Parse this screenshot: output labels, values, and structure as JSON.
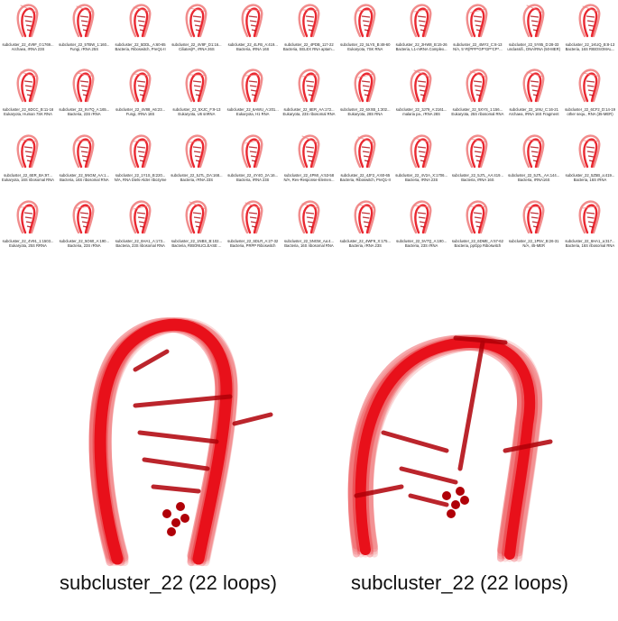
{
  "thumbnails": [
    {
      "id": "subcluster_22_4V9F_0:1769...",
      "desc": "Archaea, rRNA 23S"
    },
    {
      "id": "subcluster_22_5TBW_1:160...",
      "desc": "Fungi, rRNA 25S"
    },
    {
      "id": "subcluster_22_5DDL_A:60-65",
      "desc": "Bacteria, Riboswitch, PreQ1-II"
    },
    {
      "id": "subcluster_22_4V8F_D1:16...",
      "desc": "Ciliates(P., rRNA 26S"
    },
    {
      "id": "subcluster_22_4LFB_A:419...",
      "desc": "Bacteria, rRNA 16S"
    },
    {
      "id": "subcluster_22_4PDB_117-22",
      "desc": "Bacteria, SELEX RNA aptam..."
    },
    {
      "id": "subcluster_22_5LYS_B:48-60",
      "desc": "Eukaryota, 7SK RNA"
    },
    {
      "id": "subcluster_22_2HW8_B:15-26",
      "desc": "Bacteria, L1-mRNA Complex..."
    },
    {
      "id": "subcluster_22_4MY2_C:8-13",
      "desc": "N/A, 5'-R(PPP*GP*GP*CP*..."
    },
    {
      "id": "subcluster_22_5Y85_D:28-33",
      "desc": "unclassifi., DNA/RNA (50-MER)"
    },
    {
      "id": "subcluster_22_1KUQ_B:8-13",
      "desc": "Bacteria, 16S RIBOSOMAL..."
    },
    {
      "id": "subcluster_22_6DCC_B:11-16",
      "desc": "Eukaryota, Human 7SK RNA"
    },
    {
      "id": "subcluster_22_5V7Q_A:165...",
      "desc": "Bacteria, 23S rRNA"
    },
    {
      "id": "subcluster_22_4V88_A6:23...",
      "desc": "Fungi, rRNA 18S"
    },
    {
      "id": "subcluster_22_5XJC_F:9-13",
      "desc": "Eukaryota, U6 snRNA"
    },
    {
      "id": "subcluster_22_6AWU_A:201...",
      "desc": "Eukaryota, H1 RNA"
    },
    {
      "id": "subcluster_22_6ER_AA:172...",
      "desc": "Eukaryota, 23S ribosomal RNA"
    },
    {
      "id": "subcluster_22_6XXB_1:302...",
      "desc": "Eukaryota, 28S RNA"
    },
    {
      "id": "subcluster_22_3J79_A:2161...",
      "desc": "malaria pa., rRNA 28S"
    },
    {
      "id": "subcluster_22_5XYS_1:156...",
      "desc": "Eukaryota, 25S ribosomal RNA"
    },
    {
      "id": "subcluster_22_1I9U_C:16-21",
      "desc": "Archaea, rRNA 16S Fragment"
    },
    {
      "id": "subcluster_22_6CF2_D:14-19",
      "desc": "other sequ., RNA (35-MER)"
    },
    {
      "id": "subcluster_22_6ER_BA:97...",
      "desc": "Eukaryota, 16S ribosomal RNA"
    },
    {
      "id": "subcluster_22_5NGM_AA:1...",
      "desc": "Bacteria, 16S ribosomal RNA"
    },
    {
      "id": "subcluster_22_1Y1S_B:220...",
      "desc": "N/A, RNA Diels-Alder ribozyme"
    },
    {
      "id": "subcluster_22_5J7L_DA:168...",
      "desc": "Bacteria, rRNA 23S"
    },
    {
      "id": "subcluster_22_4Y4O_2A:16...",
      "desc": "Bacteria, rRNA 23S"
    },
    {
      "id": "subcluster_22_4PMI_A:53-58",
      "desc": "N/A, Rev-Response-Elemen..."
    },
    {
      "id": "subcluster_22_4JF2_A:60-65",
      "desc": "Bacteria, Riboswitch, PreQ1-II"
    },
    {
      "id": "subcluster_22_4V2A_X:1706...",
      "desc": "Bacteria, rRNA 23S"
    },
    {
      "id": "subcluster_22_5J7L_AA:419...",
      "desc": "Bacteria, rRNA 16S"
    },
    {
      "id": "subcluster_22_5J7L_AA:144...",
      "desc": "Bacteria, rRNA16S"
    },
    {
      "id": "subcluster_22_5Z5B_a:419...",
      "desc": "Bacteria, 16S rRNA"
    },
    {
      "id": "subcluster_22_4V91_1:1503...",
      "desc": "Eukaryota, 25S RRNA"
    },
    {
      "id": "subcluster_22_5O60_A:190...",
      "desc": "Bacteria, 23S rRNA"
    },
    {
      "id": "subcluster_22_6HA1_A:173...",
      "desc": "Bacteria, 23S ribosomal RNA"
    },
    {
      "id": "subcluster_22_1NBS_B:102...",
      "desc": "Bacteria, RIBONUCLEASE ..."
    },
    {
      "id": "subcluster_22_6DLR_A:27-32",
      "desc": "Bacteria, PRPP Riboswitch"
    },
    {
      "id": "subcluster_22_5NGM_Aa:4...",
      "desc": "Bacteria, 16S ribosomal RNA"
    },
    {
      "id": "subcluster_22_4WF9_X:175...",
      "desc": "Bacteria, rRNA 23S"
    },
    {
      "id": "subcluster_22_5V7Q_A:190...",
      "desc": "Bacteria, 23S rRNA"
    },
    {
      "id": "subcluster_22_6DME_A:57-62",
      "desc": "Bacteria, ppGpp Riboswitch"
    },
    {
      "id": "subcluster_22_1P5V_B:26-31",
      "desc": "N/A, 45-MER"
    },
    {
      "id": "subcluster_22_6HA1_a:317...",
      "desc": "Bacteria, 16S ribosomal RNA"
    }
  ],
  "captions": {
    "left": "subcluster_22 (22 loops)",
    "right": "subcluster_22 (22 loops)"
  },
  "colors": {
    "rna": "#e8101a",
    "rna_dark": "#b00008",
    "rna_light": "#f08080"
  }
}
